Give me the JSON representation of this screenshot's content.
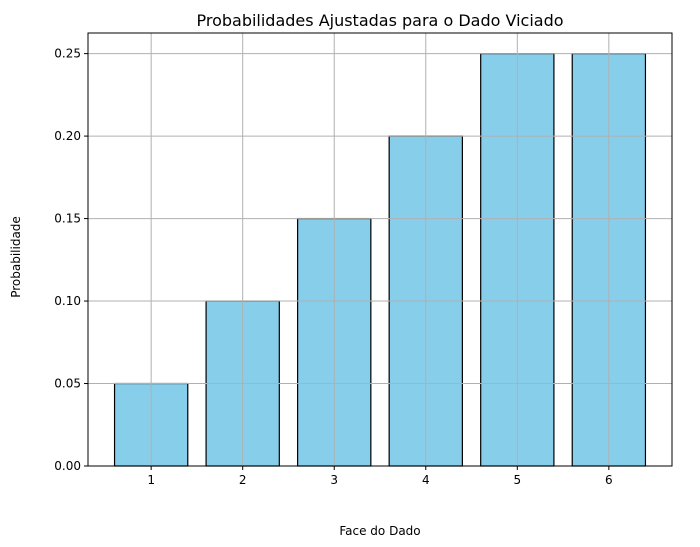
{
  "chart_data": {
    "type": "bar",
    "title": "Probabilidades Ajustadas para o Dado Viciado",
    "xlabel": "Face do Dado",
    "ylabel": "Probabilidade",
    "categories": [
      "1",
      "2",
      "3",
      "4",
      "5",
      "6"
    ],
    "values": [
      0.05,
      0.1,
      0.15,
      0.2,
      0.25,
      0.25
    ],
    "ylim": [
      0,
      0.2625
    ],
    "yticks": [
      "0.00",
      "0.05",
      "0.10",
      "0.15",
      "0.20",
      "0.25"
    ],
    "grid": true,
    "bar_color": "#87CEEB",
    "edge_color": "#000000",
    "grid_color": "#b0b0b0"
  }
}
